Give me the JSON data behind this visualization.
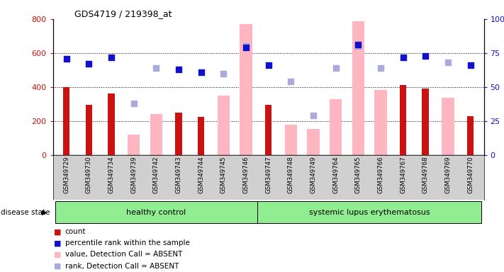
{
  "title": "GDS4719 / 219398_at",
  "samples": [
    "GSM349729",
    "GSM349730",
    "GSM349734",
    "GSM349739",
    "GSM349742",
    "GSM349743",
    "GSM349744",
    "GSM349745",
    "GSM349746",
    "GSM349747",
    "GSM349748",
    "GSM349749",
    "GSM349764",
    "GSM349765",
    "GSM349766",
    "GSM349767",
    "GSM349768",
    "GSM349769",
    "GSM349770"
  ],
  "group_healthy": [
    "GSM349729",
    "GSM349730",
    "GSM349734",
    "GSM349739",
    "GSM349742",
    "GSM349743",
    "GSM349744",
    "GSM349745",
    "GSM349746"
  ],
  "group_lupus": [
    "GSM349747",
    "GSM349748",
    "GSM349749",
    "GSM349764",
    "GSM349765",
    "GSM349766",
    "GSM349767",
    "GSM349768",
    "GSM349769",
    "GSM349770"
  ],
  "count": [
    400,
    295,
    360,
    null,
    null,
    250,
    225,
    null,
    null,
    295,
    null,
    null,
    null,
    null,
    null,
    410,
    390,
    null,
    230
  ],
  "percentile_rank": [
    71,
    67,
    72,
    null,
    null,
    63,
    61,
    null,
    79,
    66,
    null,
    null,
    null,
    81,
    null,
    72,
    73,
    null,
    66
  ],
  "value_absent": [
    null,
    null,
    null,
    120,
    242,
    null,
    null,
    348,
    770,
    null,
    180,
    155,
    330,
    785,
    382,
    null,
    null,
    338,
    null
  ],
  "rank_absent": [
    null,
    null,
    null,
    38,
    64,
    null,
    null,
    60,
    80,
    null,
    54,
    29,
    64,
    80,
    64,
    null,
    null,
    68,
    null
  ],
  "ylim_left": [
    0,
    800
  ],
  "ylim_right": [
    0,
    100
  ],
  "yticks_left": [
    0,
    200,
    400,
    600,
    800
  ],
  "yticks_right": [
    0,
    25,
    50,
    75,
    100
  ],
  "count_color": "#CC1111",
  "percentile_color": "#1111CC",
  "value_absent_color": "#FFB6C1",
  "rank_absent_color": "#AAAADD",
  "group_color": "#90EE90",
  "xtick_bg_color": "#D0D0D0"
}
